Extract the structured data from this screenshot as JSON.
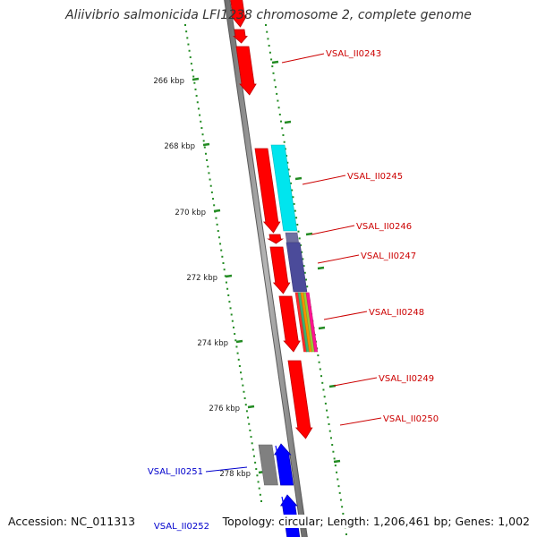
{
  "title": "Aliivibrio salmonicida LFI1238 chromosome 2, complete genome",
  "footer": {
    "accession": "Accession: NC_011313",
    "stats": "Topology: circular; Length: 1,206,461 bp; Genes: 1,002"
  },
  "colors": {
    "forward_gene": "#ff0000",
    "reverse_gene": "#0000ff",
    "label_forward": "#cc0000",
    "label_reverse": "#0000cc",
    "tick_dots": "#228b22",
    "backbone": "#888888"
  },
  "ruler": {
    "kbp_labels": [
      "266 kbp",
      "268 kbp",
      "270 kbp",
      "272 kbp",
      "274 kbp",
      "276 kbp",
      "278 kbp"
    ]
  },
  "genes": [
    {
      "label": "VSAL_II0243",
      "strand": "forward",
      "color": "#ff0000"
    },
    {
      "label": "VSAL_II0245",
      "strand": "forward",
      "color": "#ff0000"
    },
    {
      "label": "VSAL_II0246",
      "strand": "forward",
      "color": "#ff0000"
    },
    {
      "label": "VSAL_II0247",
      "strand": "forward",
      "color": "#ff0000"
    },
    {
      "label": "VSAL_II0248",
      "strand": "forward",
      "color": "#ff0000"
    },
    {
      "label": "VSAL_II0249",
      "strand": "forward",
      "color": "#ff0000"
    },
    {
      "label": "VSAL_II0250",
      "strand": "forward",
      "color": "#ff0000"
    },
    {
      "label": "VSAL_II0251",
      "strand": "reverse",
      "color": "#0000ff"
    },
    {
      "label": "VSAL_II0252",
      "strand": "reverse",
      "color": "#0000ff"
    }
  ],
  "cog_colors": [
    "#00e5ee",
    "#4b4b9a",
    "#7070a0",
    "#ff2a2a",
    "#3cb371",
    "#ff8c00",
    "#9acd32",
    "#ff1493",
    "#808080"
  ]
}
